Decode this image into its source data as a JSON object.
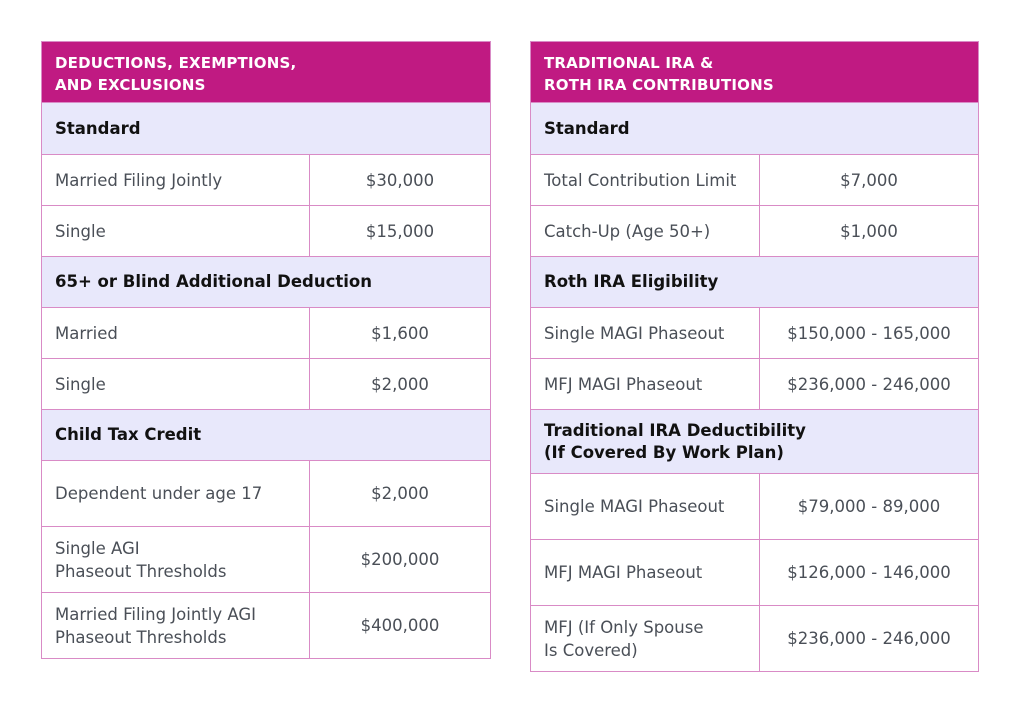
{
  "left": {
    "title": "DEDUCTIONS, EXEMPTIONS,\nAND EXCLUSIONS",
    "sections": [
      {
        "heading": "Standard",
        "rows": [
          {
            "label": "Married Filing Jointly",
            "value": "$30,000"
          },
          {
            "label": "Single",
            "value": "$15,000"
          }
        ]
      },
      {
        "heading": "65+ or Blind Additional Deduction",
        "rows": [
          {
            "label": "Married",
            "value": "$1,600"
          },
          {
            "label": "Single",
            "value": "$2,000"
          }
        ]
      },
      {
        "heading": "Child Tax Credit",
        "rows": [
          {
            "label": "Dependent under age 17",
            "value": "$2,000"
          },
          {
            "label": "Single AGI\nPhaseout Thresholds",
            "value": "$200,000"
          },
          {
            "label": "Married Filing Jointly AGI\nPhaseout Thresholds",
            "value": "$400,000"
          }
        ]
      }
    ]
  },
  "right": {
    "title": "TRADITIONAL IRA &\nROTH IRA CONTRIBUTIONS",
    "sections": [
      {
        "heading": "Standard",
        "rows": [
          {
            "label": "Total Contribution Limit",
            "value": "$7,000"
          },
          {
            "label": "Catch-Up (Age 50+)",
            "value": "$1,000"
          }
        ]
      },
      {
        "heading": "Roth IRA Eligibility",
        "rows": [
          {
            "label": "Single MAGI Phaseout",
            "value": "$150,000 - 165,000"
          },
          {
            "label": "MFJ MAGI Phaseout",
            "value": "$236,000 - 246,000"
          }
        ]
      },
      {
        "heading": "Traditional IRA Deductibility\n(If Covered By Work Plan)",
        "rows": [
          {
            "label": "Single MAGI Phaseout",
            "value": "$79,000 - 89,000"
          },
          {
            "label": "MFJ MAGI Phaseout",
            "value": "$126,000 - 146,000"
          },
          {
            "label": "MFJ (If Only Spouse\nIs Covered)",
            "value": "$236,000 - 246,000"
          }
        ]
      }
    ]
  },
  "colors": {
    "header": "#c01a82",
    "section": "#e8e8fb",
    "border": "#d98bc6"
  }
}
